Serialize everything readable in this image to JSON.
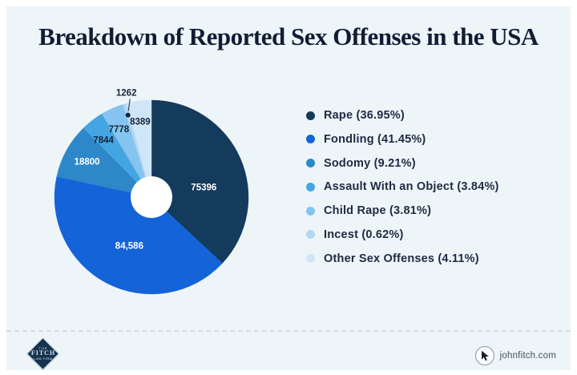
{
  "page": {
    "title": "Breakdown of Reported Sex Offenses in the USA"
  },
  "chart_data": {
    "type": "pie",
    "subtype": "donut",
    "title": "Breakdown of Reported Sex Offenses in the USA",
    "start_angle_deg": 0,
    "direction": "clockwise",
    "categories": [
      "Rape",
      "Fondling",
      "Sodomy",
      "Assault With an Object",
      "Child Rape",
      "Incest",
      "Other Sex Offenses"
    ],
    "values": [
      75396,
      84586,
      18800,
      7844,
      7778,
      1262,
      8389
    ],
    "value_labels": [
      "75396",
      "84,586",
      "18800",
      "7844",
      "7778",
      "1262",
      "8389"
    ],
    "percentages": [
      36.95,
      41.45,
      9.21,
      3.84,
      3.81,
      0.62,
      4.11
    ],
    "colors": [
      "#143a5c",
      "#1563d9",
      "#2e87c9",
      "#45a5e3",
      "#85c4ee",
      "#b4d7f2",
      "#cee6f8"
    ],
    "legend_labels": [
      "Rape (36.95%)",
      "Fondling (41.45%)",
      "Sodomy (9.21%)",
      "Assault With an Object (3.84%)",
      "Child Rape (3.81%)",
      "Incest (0.62%)",
      "Other Sex Offenses (4.11%)"
    ],
    "legend_position": "right",
    "hole_color": "#ffffff",
    "inside_label_color": "#ffffff",
    "outside_label_color": "#16233c"
  },
  "footer": {
    "brand": {
      "line1": "THE",
      "line2": "FITCH",
      "line3": "LAW FIRM"
    },
    "website": "johnfitch.com"
  }
}
